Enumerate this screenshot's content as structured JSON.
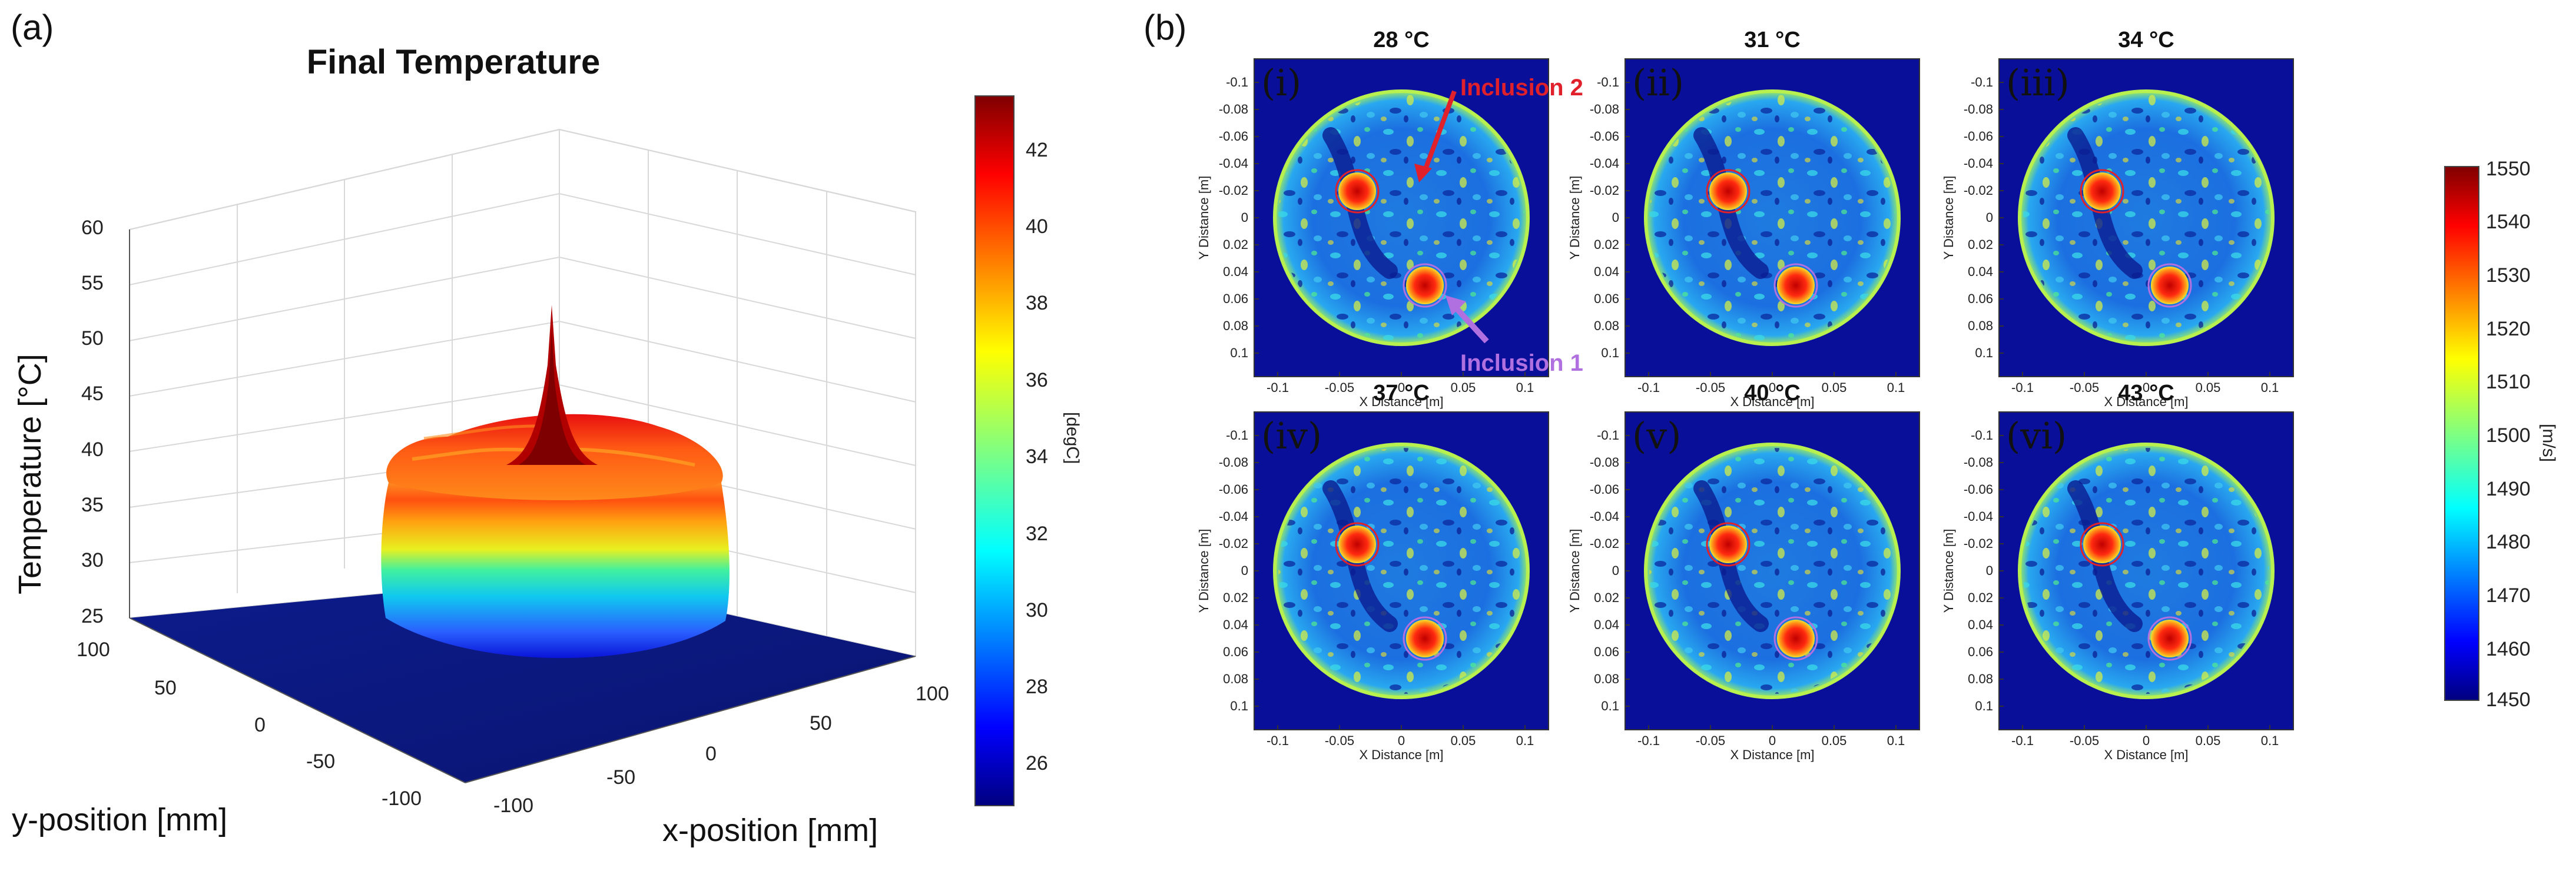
{
  "panel_a": {
    "letter": "(a)",
    "chart_data": {
      "type": "surface3d",
      "title": "Final Temperature",
      "xlabel": "x-position [mm]",
      "ylabel": "y-position [mm]",
      "zlabel": "Temperature [°C]",
      "x_ticks": [
        "-100",
        "-50",
        "0",
        "50",
        "100"
      ],
      "y_ticks": [
        "-100",
        "-50",
        "0",
        "50",
        "100"
      ],
      "z_ticks": [
        "25",
        "30",
        "35",
        "40",
        "45",
        "50",
        "55",
        "60"
      ],
      "zlim": [
        25,
        60
      ],
      "baseline_temp": 25,
      "plateau_temp": 39,
      "peak_temp": 43,
      "colorbar": {
        "label": "[degC]",
        "ticks": [
          "26",
          "28",
          "30",
          "32",
          "34",
          "36",
          "38",
          "40",
          "42"
        ],
        "range": [
          25,
          43.5
        ]
      }
    }
  },
  "panel_b": {
    "letter": "(b)",
    "chart_data": {
      "type": "heatmap",
      "xlabel": "X Distance [m]",
      "ylabel": "Y Distance [m]",
      "x_ticks": [
        "-0.1",
        "-0.05",
        "0",
        "0.05",
        "0.1"
      ],
      "y_ticks": [
        "-0.1",
        "-0.08",
        "-0.06",
        "-0.04",
        "-0.02",
        "0",
        "0.02",
        "0.04",
        "0.06",
        "0.08",
        "0.1"
      ],
      "subplots": [
        {
          "roman": "(i)",
          "title": "28 °C"
        },
        {
          "roman": "(ii)",
          "title": "31 °C"
        },
        {
          "roman": "(iii)",
          "title": "34 °C"
        },
        {
          "roman": "(iv)",
          "title": "37 °C"
        },
        {
          "roman": "(v)",
          "title": "40 °C"
        },
        {
          "roman": "(vi)",
          "title": "43 °C"
        }
      ],
      "annotations": {
        "inclusion2": "Inclusion 2",
        "inclusion1": "Inclusion 1"
      },
      "colorbar": {
        "label": "[m/s]",
        "ticks": [
          "1550",
          "1540",
          "1530",
          "1520",
          "1510",
          "1500",
          "1490",
          "1480",
          "1470",
          "1460",
          "1450"
        ],
        "range": [
          1450,
          1550
        ]
      }
    }
  },
  "colors": {
    "jet_dark_red": "#7f0000",
    "jet_red": "#ff0000",
    "jet_orange": "#ff8000",
    "jet_yellow": "#ffff00",
    "jet_green": "#40ff80",
    "jet_cyan": "#00c0ff",
    "jet_blue": "#0000ff",
    "jet_navy": "#00007f",
    "annotation_red": "#e0202a",
    "annotation_purple": "#b070e0"
  }
}
